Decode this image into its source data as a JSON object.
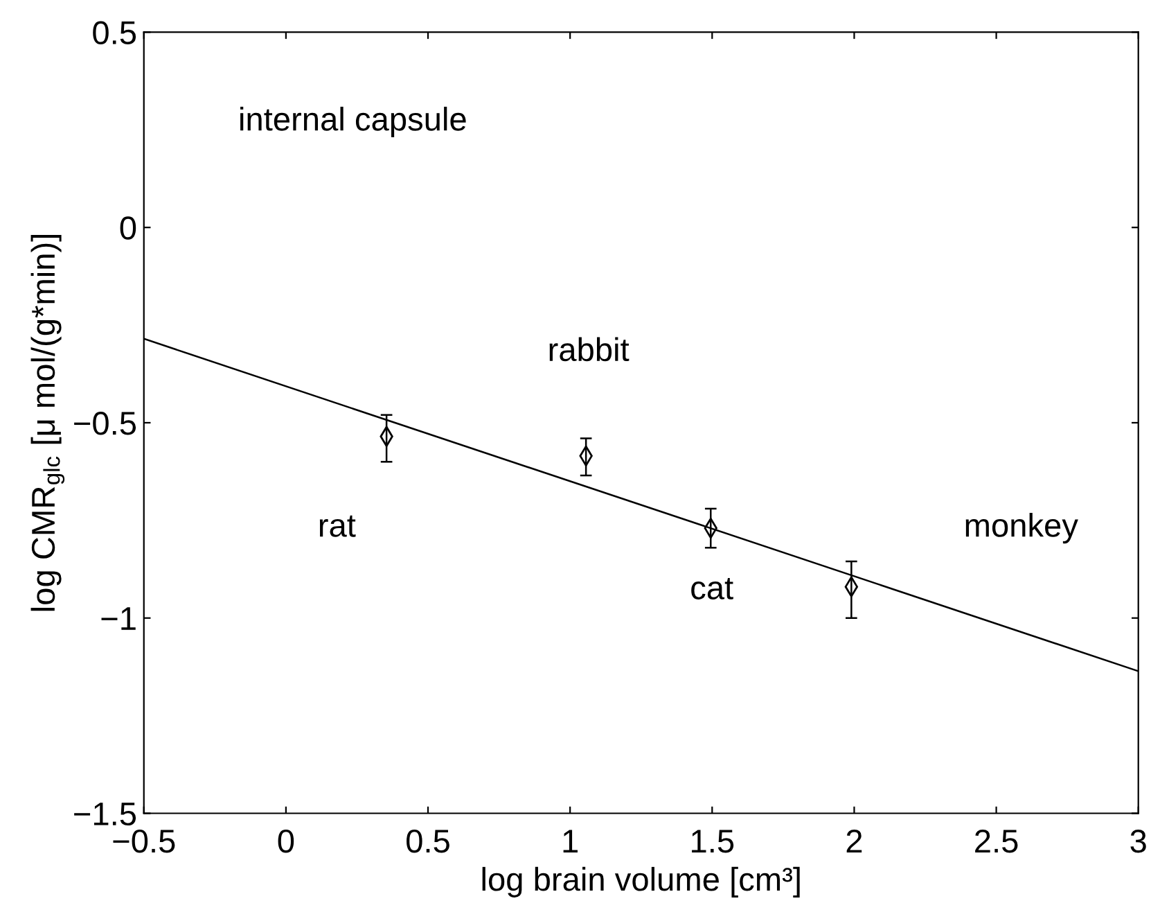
{
  "chart_data": {
    "type": "scatter",
    "xlabel": "log brain volume [cm³]",
    "ylabel": "log CMR$_{glc}$ [μ mol/(g*min)]",
    "xlim": [
      -0.5,
      3
    ],
    "ylim": [
      -1.5,
      0.5
    ],
    "xticks": [
      -0.5,
      0,
      0.5,
      1,
      1.5,
      2,
      2.5,
      3
    ],
    "yticks": [
      -1.5,
      -1,
      -0.5,
      0,
      0.5
    ],
    "grid": false,
    "legend": false,
    "series": [
      {
        "color": "#000000",
        "marker": "diamond",
        "x": [
          0.354,
          1.056,
          1.495,
          1.99
        ],
        "values": [
          -0.535,
          -0.585,
          -0.77,
          -0.92
        ],
        "errors": [
          [
            -0.6,
            -0.48
          ],
          [
            -0.635,
            -0.54
          ],
          [
            -0.82,
            -0.72
          ],
          [
            -1.0,
            -0.855
          ]
        ]
      },
      {
        "type": "line",
        "color": "#000000",
        "marker": "none",
        "line_style": "solid",
        "x": [
          -0.5,
          3
        ],
        "values": [
          -0.285,
          -1.136
        ]
      }
    ],
    "annotations": [
      "internal capsule",
      "rabbit",
      "rat",
      "cat",
      "monkey"
    ]
  }
}
